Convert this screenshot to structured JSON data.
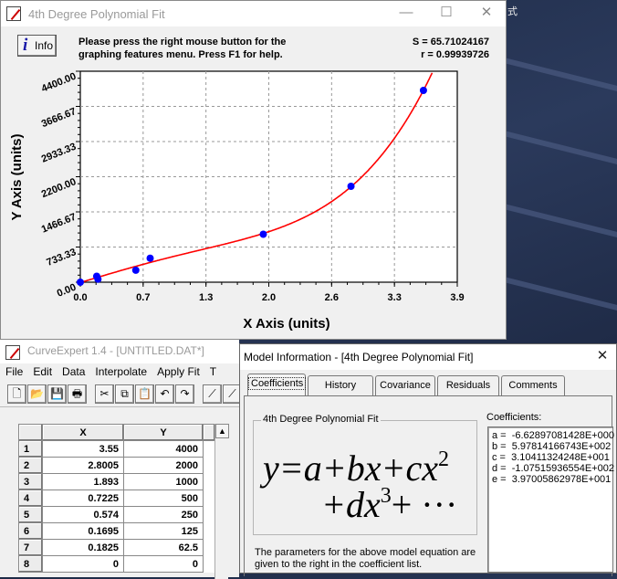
{
  "desktop": {
    "title_fragment": "式",
    "background_color": "#1d2a45"
  },
  "graph_window": {
    "title": "4th Degree Polynomial Fit",
    "controls": {
      "minimize": "—",
      "maximize": "☐",
      "close": "✕"
    },
    "info_button": {
      "icon": "info-icon",
      "glyph": "i",
      "label": "Info"
    },
    "message_line1": "Please press the right mouse button for the",
    "message_line2": "graphing features menu.  Press F1 for help.",
    "s_value": "S = 65.71024167",
    "r_value": "r = 0.99939726"
  },
  "chart_data": {
    "type": "scatter",
    "xlabel": "X Axis (units)",
    "ylabel": "Y Axis (units)",
    "xlim": [
      0,
      3.9
    ],
    "ylim": [
      0,
      4400
    ],
    "x_ticks": [
      "0.0",
      "0.7",
      "1.3",
      "2.0",
      "2.6",
      "3.3",
      "3.9"
    ],
    "x_tick_values": [
      0,
      0.65,
      1.3,
      1.95,
      2.6,
      3.25,
      3.9
    ],
    "y_ticks": [
      "0.00",
      "733.33",
      "1466.67",
      "2200.00",
      "2933.33",
      "3666.67",
      "4400.00"
    ],
    "y_tick_values": [
      0,
      733.33,
      1466.67,
      2200,
      2933.33,
      3666.67,
      4400
    ],
    "grid": true,
    "points": {
      "x": [
        3.55,
        2.8005,
        1.893,
        0.7225,
        0.574,
        0.1695,
        0.1825,
        0
      ],
      "y": [
        4000,
        2000,
        1000,
        500,
        250,
        125,
        62.5,
        0
      ],
      "color": "#0000ff"
    },
    "fit": {
      "model": "4th Degree Polynomial",
      "coefficients": [
        -6.62897081428,
        597.814166743,
        31.0411324248,
        -107.515936554,
        39.7005862978
      ],
      "color": "#ff0000"
    }
  },
  "main_window": {
    "title": "CurveExpert 1.4 - [UNTITLED.DAT*]",
    "menu": [
      "File",
      "Edit",
      "Data",
      "Interpolate",
      "Apply Fit",
      "T"
    ],
    "toolbar": [
      {
        "icon": "new-file-icon",
        "glyph": "🗋"
      },
      {
        "icon": "open-folder-icon",
        "glyph": "📂"
      },
      {
        "icon": "save-icon",
        "glyph": "💾"
      },
      {
        "icon": "print-icon",
        "glyph": "🖶"
      },
      {
        "icon": "cut-icon",
        "glyph": "✂"
      },
      {
        "icon": "copy-icon",
        "glyph": "⧉"
      },
      {
        "icon": "paste-icon",
        "glyph": "📋"
      },
      {
        "icon": "undo-icon",
        "glyph": "↶"
      },
      {
        "icon": "redo-icon",
        "glyph": "↷"
      },
      {
        "icon": "plot-icon",
        "glyph": "⟋"
      },
      {
        "icon": "plot2-icon",
        "glyph": "⟋"
      }
    ],
    "table": {
      "headers": [
        "X",
        "Y"
      ],
      "rows": [
        [
          "1",
          "3.55",
          "4000"
        ],
        [
          "2",
          "2.8005",
          "2000"
        ],
        [
          "3",
          "1.893",
          "1000"
        ],
        [
          "4",
          "0.7225",
          "500"
        ],
        [
          "5",
          "0.574",
          "250"
        ],
        [
          "6",
          "0.1695",
          "125"
        ],
        [
          "7",
          "0.1825",
          "62.5"
        ],
        [
          "8",
          "0",
          "0"
        ]
      ],
      "scroll_up": "▲"
    }
  },
  "model_dialog": {
    "title": "Model Information - [4th Degree Polynomial Fit]",
    "close": "✕",
    "tabs": [
      "Coefficients",
      "History",
      "Covariance",
      "Residuals",
      "Comments"
    ],
    "active_tab": "Coefficients",
    "group_label": "4th Degree Polynomial Fit",
    "equation_line1": "y=a+bx+cx",
    "equation_line1_sup": "2",
    "equation_line2a": "+dx",
    "equation_line2_sup": "3",
    "equation_line2b": "+ ···",
    "description": "The parameters for the above model equation are given to the right in the coefficient list.",
    "coefficients_label": "Coefficients:",
    "coefficients": [
      "a =  -6.62897081428E+000",
      "b =  5.97814166743E+002",
      "c =  3.10411324248E+001",
      "d =  -1.07515936554E+002",
      "e =  3.97005862978E+001"
    ]
  }
}
